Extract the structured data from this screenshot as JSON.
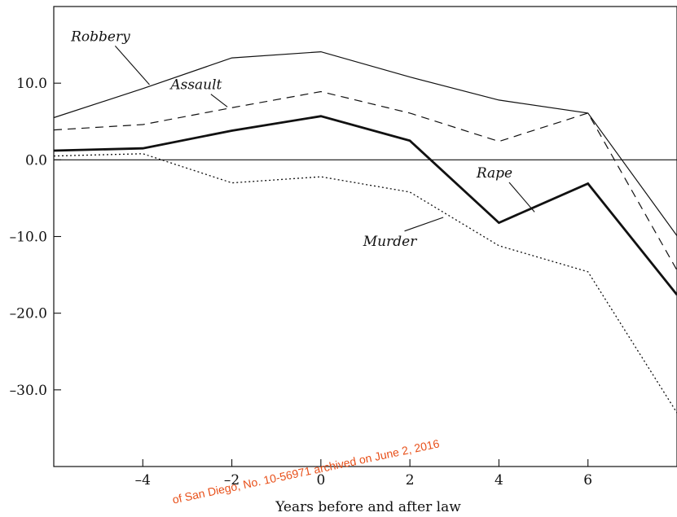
{
  "chart_data": {
    "type": "line",
    "title": "",
    "xlabel": "Years before and after law",
    "ylabel": "",
    "xlim": [
      -6,
      8
    ],
    "ylim": [
      -40,
      20
    ],
    "x_ticks": [
      "–4",
      "–2",
      "0",
      "2",
      "4",
      "6"
    ],
    "y_ticks": [
      "10.0",
      "0.0",
      "–10.0",
      "–20.0",
      "–30.0"
    ],
    "series": [
      {
        "name": "Robbery",
        "style": "solid-thin",
        "x": [
          -6,
          -4,
          -2,
          0,
          2,
          4,
          6,
          8
        ],
        "y": [
          5.5,
          9.3,
          13.3,
          14.1,
          10.8,
          7.8,
          6.1,
          -9.9
        ]
      },
      {
        "name": "Assault",
        "style": "dashed",
        "x": [
          -6,
          -4,
          -2,
          0,
          2,
          4,
          6,
          8
        ],
        "y": [
          3.9,
          4.6,
          6.8,
          8.9,
          6.1,
          2.4,
          6.1,
          -14.4
        ]
      },
      {
        "name": "Rape",
        "style": "solid-thick",
        "x": [
          -6,
          -4,
          -2,
          0,
          2,
          4,
          6,
          8
        ],
        "y": [
          1.2,
          1.5,
          3.8,
          5.7,
          2.5,
          -8.2,
          -3.1,
          -17.6
        ]
      },
      {
        "name": "Murder",
        "style": "dotted",
        "x": [
          -6,
          -4,
          -2,
          0,
          2,
          4,
          6,
          8
        ],
        "y": [
          0.5,
          0.8,
          -3.0,
          -2.2,
          -4.2,
          -11.2,
          -14.6,
          -33.0
        ]
      }
    ],
    "labels": [
      {
        "text": "Robbery",
        "series": "Robbery",
        "x": -4.95,
        "y": 15.5,
        "lx": -3.85,
        "ly": 9.8
      },
      {
        "text": "Assault",
        "series": "Assault",
        "x": -2.8,
        "y": 9.2,
        "lx": -2.1,
        "ly": 6.9
      },
      {
        "text": "Rape",
        "series": "Rape",
        "x": 3.9,
        "y": -2.3,
        "lx": 4.8,
        "ly": -6.8
      },
      {
        "text": "Murder",
        "series": "Murder",
        "x": 1.55,
        "y": -11.2,
        "lx": 2.75,
        "ly": -7.5
      }
    ],
    "zero_line": true,
    "grid": false,
    "legend": "none"
  },
  "watermark": "of San Diego, No. 10-56971 archived on June 2, 2016"
}
